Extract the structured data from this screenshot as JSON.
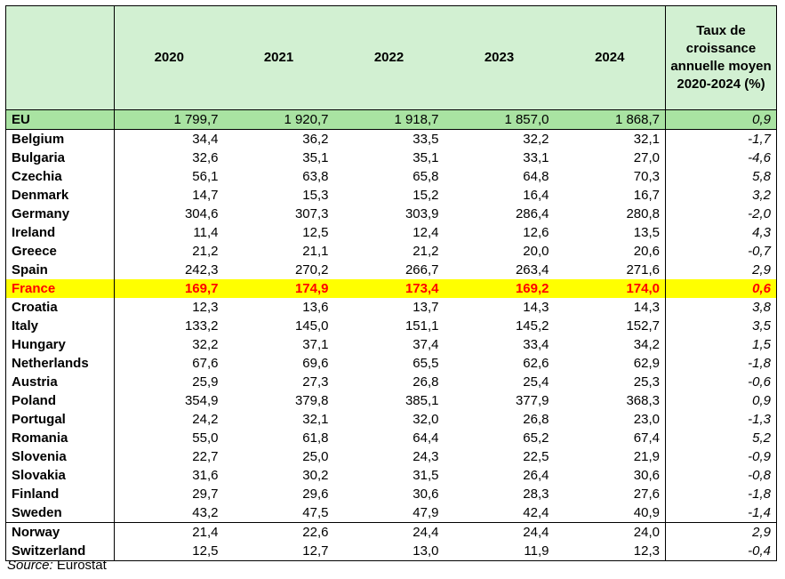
{
  "header": {
    "country": "",
    "years": [
      "2020",
      "2021",
      "2022",
      "2023",
      "2024"
    ],
    "rate_label": "Taux de croissance annuelle moyen 2020-2024 (%)"
  },
  "rows": [
    {
      "name": "EU",
      "values": [
        "1 799,7",
        "1 920,7",
        "1 918,7",
        "1 857,0",
        "1 868,7"
      ],
      "rate": "0,9"
    },
    {
      "name": "Belgium",
      "values": [
        "34,4",
        "36,2",
        "33,5",
        "32,2",
        "32,1"
      ],
      "rate": "-1,7"
    },
    {
      "name": "Bulgaria",
      "values": [
        "32,6",
        "35,1",
        "35,1",
        "33,1",
        "27,0"
      ],
      "rate": "-4,6"
    },
    {
      "name": "Czechia",
      "values": [
        "56,1",
        "63,8",
        "65,8",
        "64,8",
        "70,3"
      ],
      "rate": "5,8"
    },
    {
      "name": "Denmark",
      "values": [
        "14,7",
        "15,3",
        "15,2",
        "16,4",
        "16,7"
      ],
      "rate": "3,2"
    },
    {
      "name": "Germany",
      "values": [
        "304,6",
        "307,3",
        "303,9",
        "286,4",
        "280,8"
      ],
      "rate": "-2,0"
    },
    {
      "name": "Ireland",
      "values": [
        "11,4",
        "12,5",
        "12,4",
        "12,6",
        "13,5"
      ],
      "rate": "4,3"
    },
    {
      "name": "Greece",
      "values": [
        "21,2",
        "21,1",
        "21,2",
        "20,0",
        "20,6"
      ],
      "rate": "-0,7"
    },
    {
      "name": "Spain",
      "values": [
        "242,3",
        "270,2",
        "266,7",
        "263,4",
        "271,6"
      ],
      "rate": "2,9"
    },
    {
      "name": "France",
      "values": [
        "169,7",
        "174,9",
        "173,4",
        "169,2",
        "174,0"
      ],
      "rate": "0,6"
    },
    {
      "name": "Croatia",
      "values": [
        "12,3",
        "13,6",
        "13,7",
        "14,3",
        "14,3"
      ],
      "rate": "3,8"
    },
    {
      "name": "Italy",
      "values": [
        "133,2",
        "145,0",
        "151,1",
        "145,2",
        "152,7"
      ],
      "rate": "3,5"
    },
    {
      "name": "Hungary",
      "values": [
        "32,2",
        "37,1",
        "37,4",
        "33,4",
        "34,2"
      ],
      "rate": "1,5"
    },
    {
      "name": "Netherlands",
      "values": [
        "67,6",
        "69,6",
        "65,5",
        "62,6",
        "62,9"
      ],
      "rate": "-1,8"
    },
    {
      "name": "Austria",
      "values": [
        "25,9",
        "27,3",
        "26,8",
        "25,4",
        "25,3"
      ],
      "rate": "-0,6"
    },
    {
      "name": "Poland",
      "values": [
        "354,9",
        "379,8",
        "385,1",
        "377,9",
        "368,3"
      ],
      "rate": "0,9"
    },
    {
      "name": "Portugal",
      "values": [
        "24,2",
        "32,1",
        "32,0",
        "26,8",
        "23,0"
      ],
      "rate": "-1,3"
    },
    {
      "name": "Romania",
      "values": [
        "55,0",
        "61,8",
        "64,4",
        "65,2",
        "67,4"
      ],
      "rate": "5,2"
    },
    {
      "name": "Slovenia",
      "values": [
        "22,7",
        "25,0",
        "24,3",
        "22,5",
        "21,9"
      ],
      "rate": "-0,9"
    },
    {
      "name": "Slovakia",
      "values": [
        "31,6",
        "30,2",
        "31,5",
        "26,4",
        "30,6"
      ],
      "rate": "-0,8"
    },
    {
      "name": "Finland",
      "values": [
        "29,7",
        "29,6",
        "30,6",
        "28,3",
        "27,6"
      ],
      "rate": "-1,8"
    },
    {
      "name": "Sweden",
      "values": [
        "43,2",
        "47,5",
        "47,9",
        "42,4",
        "40,9"
      ],
      "rate": "-1,4"
    },
    {
      "name": "Norway",
      "values": [
        "21,4",
        "22,6",
        "24,4",
        "24,4",
        "24,0"
      ],
      "rate": "2,9"
    },
    {
      "name": "Switzerland",
      "values": [
        "12,5",
        "12,7",
        "13,0",
        "11,9",
        "12,3"
      ],
      "rate": "-0,4"
    }
  ],
  "source": {
    "label": "Source:",
    "value": "Eurostat"
  },
  "colors": {
    "header_bg": "#d2f0d2",
    "eu_row_bg": "#a9e3a2",
    "highlight_bg": "#ffff00",
    "highlight_text": "#ff0000"
  }
}
